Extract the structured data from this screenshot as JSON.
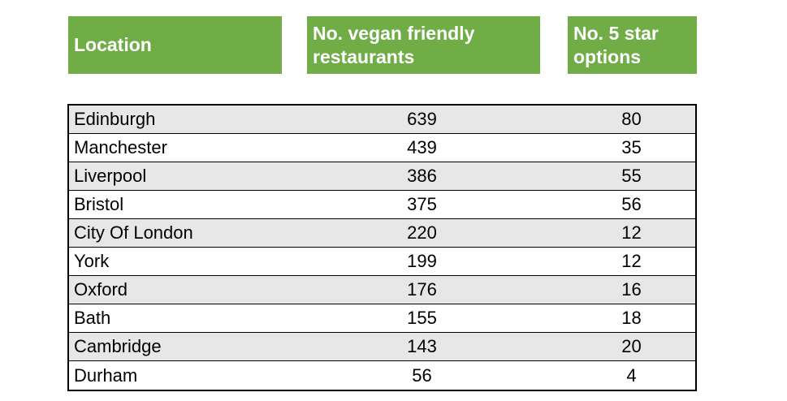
{
  "colors": {
    "header_bg": "#70AD47",
    "header_text": "#FFFFFF",
    "alt_row_bg": "#E7E7E7",
    "row_bg": "#FFFFFF",
    "border": "#000000",
    "body_text": "#000000"
  },
  "headers": {
    "location": "Location",
    "vegan": "No. vegan friendly restaurants",
    "five_star": "No. 5 star options"
  },
  "rows": [
    {
      "location": "Edinburgh",
      "vegan": "639",
      "five_star": "80"
    },
    {
      "location": "Manchester",
      "vegan": "439",
      "five_star": "35"
    },
    {
      "location": "Liverpool",
      "vegan": "386",
      "five_star": "55"
    },
    {
      "location": "Bristol",
      "vegan": "375",
      "five_star": "56"
    },
    {
      "location": "City Of London",
      "vegan": "220",
      "five_star": "12"
    },
    {
      "location": "York",
      "vegan": "199",
      "five_star": "12"
    },
    {
      "location": "Oxford",
      "vegan": "176",
      "five_star": "16"
    },
    {
      "location": "Bath",
      "vegan": "155",
      "five_star": "18"
    },
    {
      "location": "Cambridge",
      "vegan": "143",
      "five_star": "20"
    },
    {
      "location": "Durham",
      "vegan": "56",
      "five_star": "4"
    }
  ],
  "chart_data": {
    "type": "table",
    "columns": [
      "Location",
      "No. vegan friendly restaurants",
      "No. 5 star options"
    ],
    "rows": [
      [
        "Edinburgh",
        639,
        80
      ],
      [
        "Manchester",
        439,
        35
      ],
      [
        "Liverpool",
        386,
        55
      ],
      [
        "Bristol",
        375,
        56
      ],
      [
        "City Of London",
        220,
        12
      ],
      [
        "York",
        199,
        12
      ],
      [
        "Oxford",
        176,
        16
      ],
      [
        "Bath",
        155,
        18
      ],
      [
        "Cambridge",
        143,
        20
      ],
      [
        "Durham",
        56,
        4
      ]
    ],
    "layout_hints": {
      "alternating_row_shading": true,
      "first_data_row_shaded": true,
      "header_style": "green-fill-white-bold-text",
      "column_alignment": [
        "left",
        "center",
        "center"
      ]
    }
  }
}
